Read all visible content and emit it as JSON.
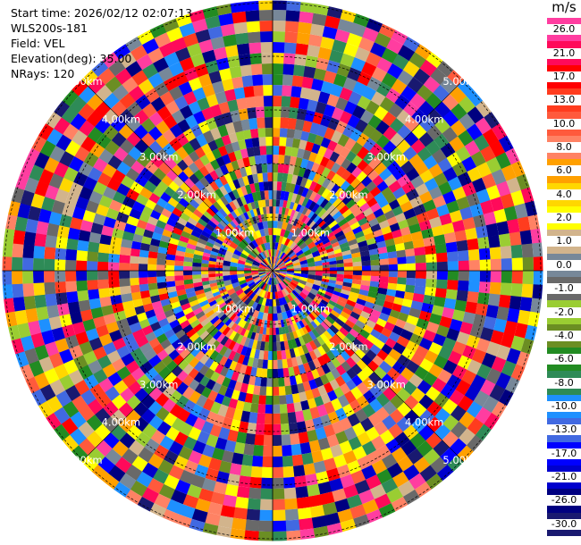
{
  "info": {
    "start_time": "Start time: 2026/02/12 02:07:13",
    "site": "WLS200s-181",
    "field": "Field: VEL",
    "elevation": "Elevation(deg): 35.00",
    "nrays": "NRays: 120"
  },
  "ring_labels": [
    "1.00km",
    "2.00km",
    "3.00km",
    "4.00km",
    "5.00km"
  ],
  "colorbar": {
    "unit": "m/s",
    "levels": [
      {
        "label": "26.0",
        "color": "#ff3da0"
      },
      {
        "label": "21.0",
        "color": "#ff0a5a"
      },
      {
        "label": "17.0",
        "color": "#ff0000"
      },
      {
        "label": "13.0",
        "color": "#ff3c1e"
      },
      {
        "label": "10.0",
        "color": "#ff5a3c"
      },
      {
        "label": "8.0",
        "color": "#ff8264"
      },
      {
        "label": "6.0",
        "color": "#ffa000"
      },
      {
        "label": "4.0",
        "color": "#ffd700"
      },
      {
        "label": "2.0",
        "color": "#ffff00"
      },
      {
        "label": "1.0",
        "color": "#d2b48c"
      },
      {
        "label": "0.0",
        "color": "#778899"
      },
      {
        "label": "-1.0",
        "color": "#696969"
      },
      {
        "label": "-2.0",
        "color": "#9acd32"
      },
      {
        "label": "-4.0",
        "color": "#6b8e23"
      },
      {
        "label": "-6.0",
        "color": "#228b22"
      },
      {
        "label": "-8.0",
        "color": "#2e8b57"
      },
      {
        "label": "-10.0",
        "color": "#1e90ff"
      },
      {
        "label": "-13.0",
        "color": "#4169e1"
      },
      {
        "label": "-17.0",
        "color": "#0000ff"
      },
      {
        "label": "-21.0",
        "color": "#0000cd"
      },
      {
        "label": "-26.0",
        "color": "#000080"
      },
      {
        "label": "-30.0",
        "color": "#191970"
      }
    ]
  }
}
